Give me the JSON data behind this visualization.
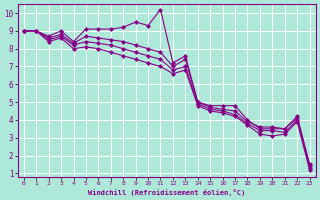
{
  "xlabel": "Windchill (Refroidissement éolien,°C)",
  "bg_color": "#aee8d8",
  "grid_color": "#ffffff",
  "line_color": "#880088",
  "marker": "D",
  "markersize": 2.0,
  "linewidth": 0.8,
  "xlim": [
    -0.5,
    23.5
  ],
  "ylim": [
    0.8,
    10.5
  ],
  "xticks": [
    0,
    1,
    2,
    3,
    4,
    5,
    6,
    7,
    8,
    9,
    10,
    11,
    12,
    13,
    14,
    15,
    16,
    17,
    18,
    19,
    20,
    21,
    22,
    23
  ],
  "yticks": [
    1,
    2,
    3,
    4,
    5,
    6,
    7,
    8,
    9,
    10
  ],
  "line1_x": [
    0,
    1,
    2,
    3,
    4,
    5,
    6,
    7,
    8,
    9,
    10,
    11,
    12,
    13,
    14,
    15,
    16,
    17,
    18,
    19,
    20,
    21,
    22,
    23
  ],
  "line1_y": [
    9.0,
    9.0,
    8.7,
    9.0,
    8.4,
    9.1,
    9.1,
    9.1,
    9.2,
    9.5,
    9.3,
    10.2,
    7.2,
    7.6,
    5.0,
    4.8,
    4.8,
    4.8,
    4.0,
    3.5,
    3.5,
    3.5,
    4.2,
    1.5
  ],
  "line2_x": [
    0,
    1,
    2,
    3,
    4,
    5,
    6,
    7,
    8,
    9,
    10,
    11,
    12,
    13,
    14,
    15,
    16,
    17,
    18,
    19,
    20,
    21,
    22,
    23
  ],
  "line2_y": [
    9.0,
    9.0,
    8.6,
    8.8,
    8.3,
    8.7,
    8.6,
    8.5,
    8.4,
    8.2,
    8.0,
    7.8,
    7.0,
    7.4,
    5.0,
    4.7,
    4.6,
    4.5,
    3.9,
    3.6,
    3.6,
    3.5,
    4.1,
    1.4
  ],
  "line3_x": [
    0,
    1,
    2,
    3,
    4,
    5,
    6,
    7,
    8,
    9,
    10,
    11,
    12,
    13,
    14,
    15,
    16,
    17,
    18,
    19,
    20,
    21,
    22,
    23
  ],
  "line3_y": [
    9.0,
    9.0,
    8.5,
    8.7,
    8.2,
    8.4,
    8.3,
    8.2,
    8.0,
    7.8,
    7.6,
    7.4,
    6.8,
    7.0,
    4.9,
    4.6,
    4.5,
    4.3,
    3.8,
    3.4,
    3.4,
    3.3,
    4.0,
    1.3
  ],
  "line4_x": [
    0,
    1,
    2,
    3,
    4,
    5,
    6,
    7,
    8,
    9,
    10,
    11,
    12,
    13,
    14,
    15,
    16,
    17,
    18,
    19,
    20,
    21,
    22,
    23
  ],
  "line4_y": [
    9.0,
    9.0,
    8.4,
    8.6,
    8.0,
    8.1,
    8.0,
    7.8,
    7.6,
    7.4,
    7.2,
    7.0,
    6.6,
    6.8,
    4.8,
    4.5,
    4.4,
    4.2,
    3.7,
    3.2,
    3.1,
    3.2,
    3.9,
    1.2
  ]
}
